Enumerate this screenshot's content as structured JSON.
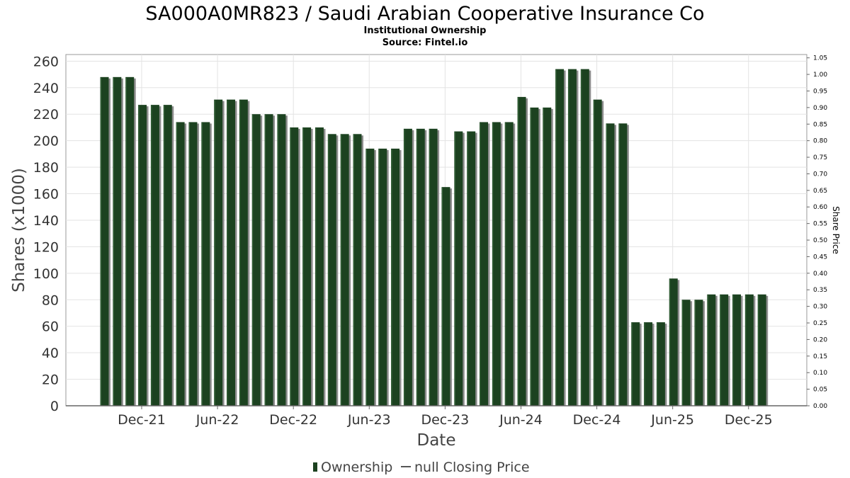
{
  "chart_data": {
    "type": "bar",
    "title": "SA000A0MR823 / Saudi Arabian Cooperative Insurance Co",
    "subtitle_lines": [
      "Institutional Ownership",
      "Source: Fintel.io"
    ],
    "xlabel": "Date",
    "ylabel": "Shares (x1000)",
    "y2label": "Share Price",
    "ylim": [
      0,
      265
    ],
    "y2lim": [
      0,
      1.06
    ],
    "yticks": [
      "0",
      "20",
      "40",
      "60",
      "80",
      "100",
      "120",
      "140",
      "160",
      "180",
      "200",
      "220",
      "240",
      "260"
    ],
    "y2ticks": [
      "0.00",
      "0.05",
      "0.10",
      "0.15",
      "0.20",
      "0.25",
      "0.30",
      "0.35",
      "0.40",
      "0.45",
      "0.50",
      "0.55",
      "0.60",
      "0.65",
      "0.70",
      "0.75",
      "0.80",
      "0.85",
      "0.90",
      "0.95",
      "1.00",
      "1.05"
    ],
    "xticks": [
      "Dec-21",
      "Jun-22",
      "Dec-22",
      "Jun-23",
      "Dec-23",
      "Jun-24",
      "Dec-24",
      "Jun-25",
      "Dec-25"
    ],
    "grid": true,
    "legend_position": "bottom",
    "series": [
      {
        "name": "Ownership",
        "color": "#1c4220",
        "values": [
          248,
          248,
          248,
          227,
          227,
          227,
          214,
          214,
          214,
          231,
          231,
          231,
          220,
          220,
          220,
          210,
          210,
          210,
          205,
          205,
          205,
          194,
          194,
          194,
          209,
          209,
          209,
          165,
          207,
          207,
          214,
          214,
          214,
          233,
          225,
          225,
          254,
          254,
          254,
          231,
          213,
          213,
          63,
          63,
          63,
          96,
          80,
          80,
          84,
          84,
          84,
          84,
          84
        ]
      }
    ],
    "legend": [
      {
        "label": "Ownership",
        "symbol": "bar",
        "color": "#1c4220"
      },
      {
        "label": "null Closing Price",
        "symbol": "line",
        "color": "#555555"
      }
    ]
  }
}
